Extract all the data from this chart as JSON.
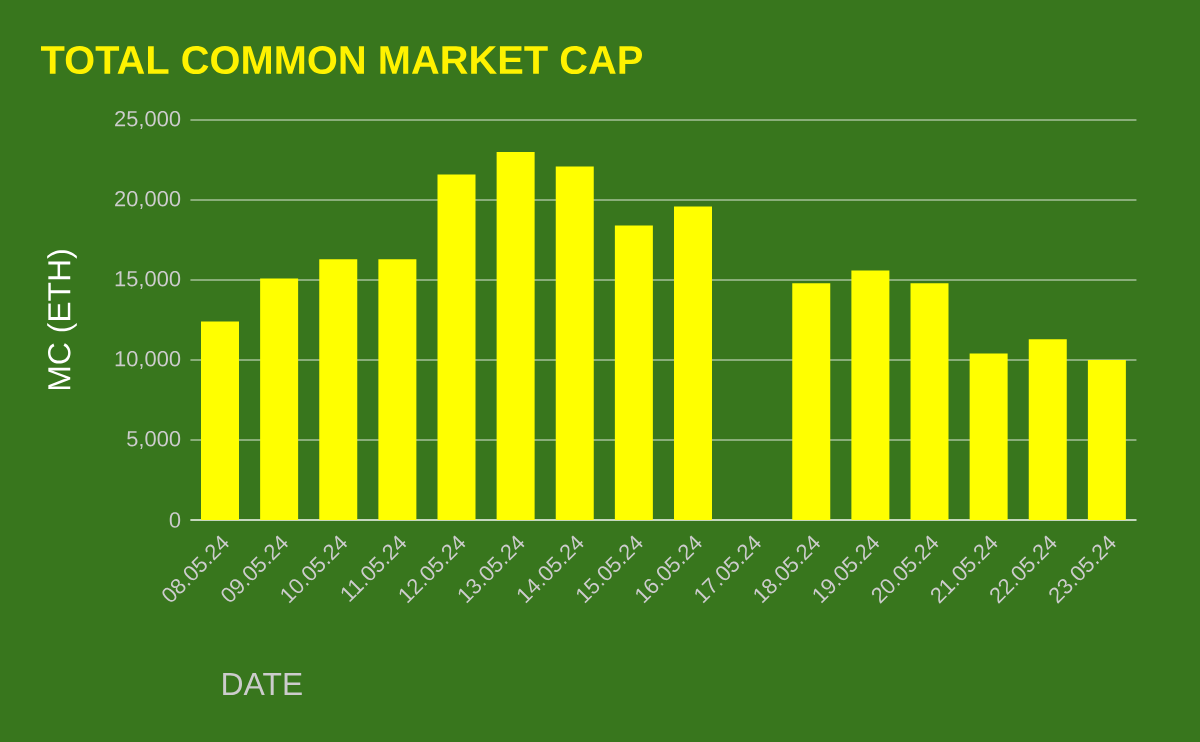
{
  "chart_data": {
    "type": "bar",
    "title": "TOTAL COMMON MARKET CAP",
    "xlabel": "DATE",
    "ylabel": "MC (ETH)",
    "categories": [
      "08.05.24",
      "09.05.24",
      "10.05.24",
      "11.05.24",
      "12.05.24",
      "13.05.24",
      "14.05.24",
      "15.05.24",
      "16.05.24",
      "17.05.24",
      "18.05.24",
      "19.05.24",
      "20.05.24",
      "21.05.24",
      "22.05.24",
      "23.05.24"
    ],
    "values": [
      12400,
      15100,
      16300,
      16300,
      21600,
      23000,
      22100,
      18400,
      19600,
      null,
      14800,
      15600,
      14800,
      10400,
      11300,
      10000
    ],
    "color": "#ffff00",
    "ylim": [
      0,
      25000
    ],
    "yticks": [
      {
        "value": 0,
        "label": "0"
      },
      {
        "value": 5000,
        "label": "5,000"
      },
      {
        "value": 10000,
        "label": "10,000"
      },
      {
        "value": 15000,
        "label": "15,000"
      },
      {
        "value": 20000,
        "label": "20,000"
      },
      {
        "value": 25000,
        "label": "25,000"
      }
    ],
    "grid": "y"
  }
}
